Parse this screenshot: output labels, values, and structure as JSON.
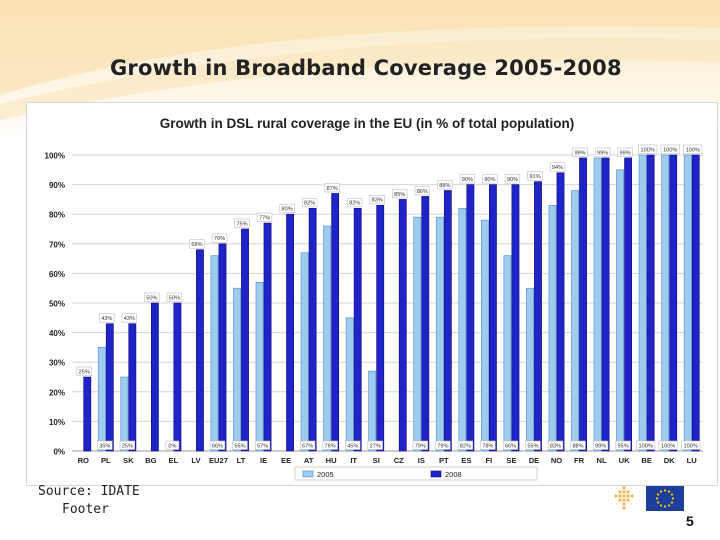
{
  "slide": {
    "title": "Growth in Broadband Coverage 2005-2008",
    "source": "Source: IDATE",
    "footer": "Footer",
    "page_number": "5"
  },
  "colors": {
    "series_2005_fill": "#9ecbee",
    "series_2005_edge": "#4a8ec9",
    "series_2008_fill": "#1f23c8",
    "series_2008_edge": "#0c0e7a",
    "gridline": "#d6d6d6",
    "axis_text": "#222222",
    "flag_blue": "#1d3f9b",
    "flag_star": "#ffd200",
    "logo_dot": "#f2b74f"
  },
  "chart_data": {
    "type": "bar",
    "title": "Growth in DSL rural coverage in the EU (in % of total population)",
    "xlabel": "",
    "ylabel": "",
    "ylim": [
      0,
      100
    ],
    "y_ticks": [
      "0%",
      "10%",
      "20%",
      "30%",
      "40%",
      "50%",
      "60%",
      "70%",
      "80%",
      "90%",
      "100%"
    ],
    "grid": true,
    "legend_position": "bottom-center",
    "categories": [
      "RO",
      "PL",
      "SK",
      "BG",
      "EL",
      "LV",
      "EU27",
      "LT",
      "IE",
      "EE",
      "AT",
      "HU",
      "IT",
      "SI",
      "CZ",
      "IS",
      "PT",
      "ES",
      "FI",
      "SE",
      "DE",
      "NO",
      "FR",
      "NL",
      "UK",
      "BE",
      "DK",
      "LU"
    ],
    "series": [
      {
        "name": "2005",
        "values": [
          0,
          35,
          25,
          0,
          0,
          0,
          66,
          55,
          57,
          0,
          67,
          76,
          45,
          27,
          0,
          79,
          79,
          82,
          78,
          66,
          55,
          83,
          88,
          99,
          95,
          100,
          100,
          100
        ],
        "labels": [
          "",
          "35%",
          "25%",
          "",
          "0%",
          "",
          "66%",
          "55%",
          "57%",
          "",
          "67%",
          "76%",
          "45%",
          "27%",
          "",
          "79%",
          "79%",
          "82%",
          "78%",
          "66%",
          "55%",
          "83%",
          "88%",
          "99%",
          "95%",
          "100%",
          "100%",
          "100%"
        ]
      },
      {
        "name": "2008",
        "values": [
          25,
          43,
          43,
          50,
          50,
          68,
          70,
          75,
          77,
          80,
          82,
          87,
          82,
          83,
          85,
          86,
          88,
          90,
          90,
          90,
          91,
          94,
          99,
          99,
          99,
          100,
          100,
          100
        ],
        "labels": [
          "25%",
          "43%",
          "43%",
          "50%",
          "50%",
          "68%",
          "70%",
          "75%",
          "77%",
          "80%",
          "82%",
          "87%",
          "82%",
          "83%",
          "85%",
          "86%",
          "88%",
          "90%",
          "90%",
          "90%",
          "91%",
          "94%",
          "99%",
          "99%",
          "99%",
          "100%",
          "100%",
          "100%"
        ]
      }
    ]
  }
}
